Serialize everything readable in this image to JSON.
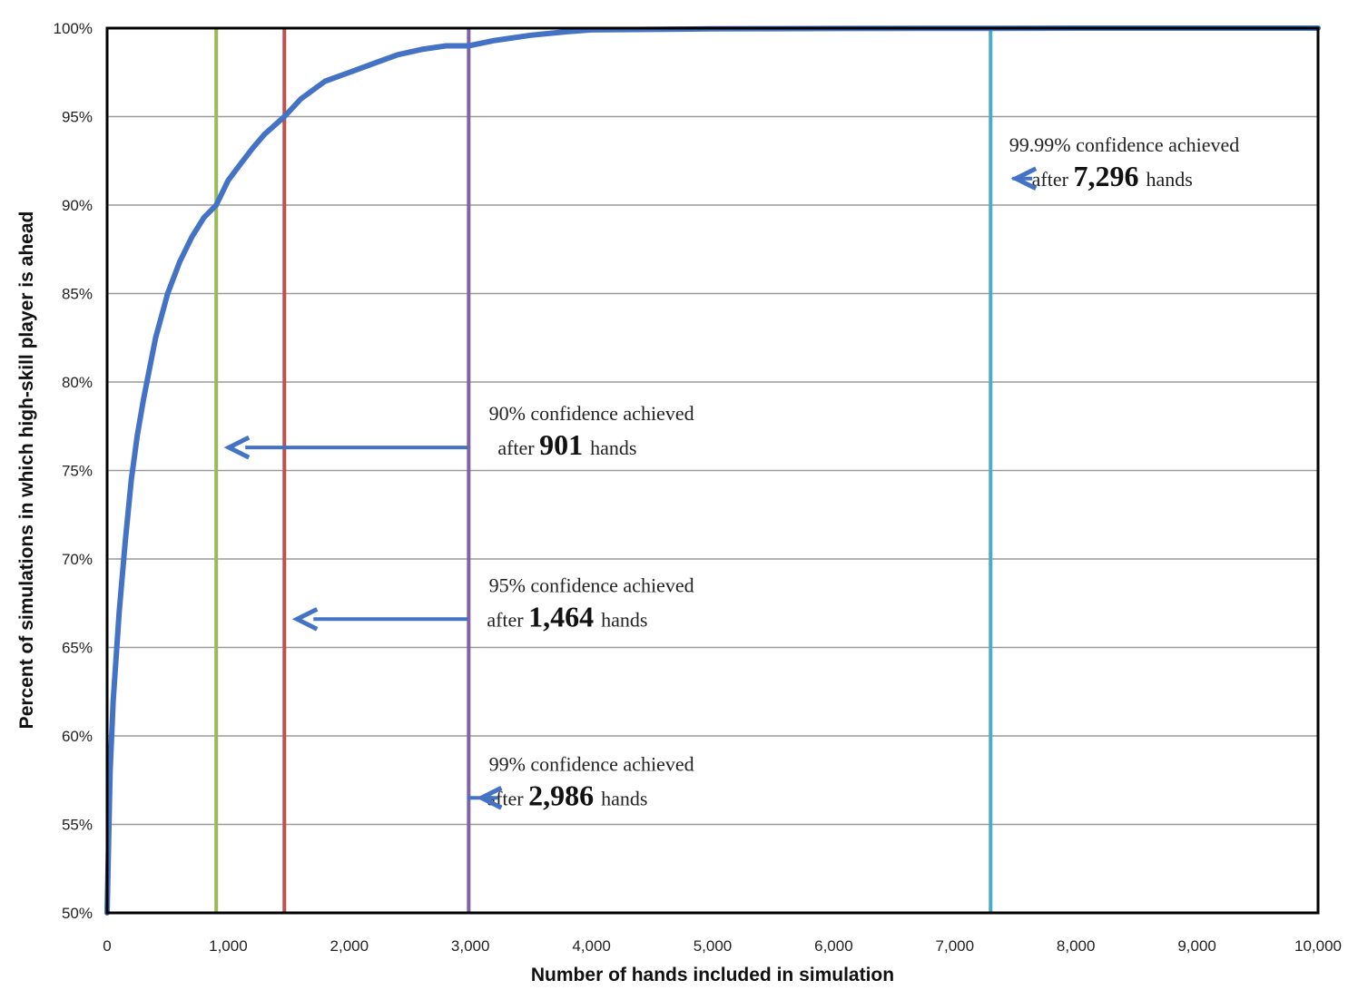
{
  "chart_data": {
    "type": "line",
    "title": "",
    "xlabel": "Number of hands included in simulation",
    "ylabel": "Percent of simulations in which high-skill player is ahead",
    "xlim": [
      0,
      10000
    ],
    "ylim": [
      50,
      100
    ],
    "x_ticks": [
      0,
      1000,
      2000,
      3000,
      4000,
      5000,
      6000,
      7000,
      8000,
      9000,
      10000
    ],
    "x_tick_labels": [
      "0",
      "1,000",
      "2,000",
      "3,000",
      "4,000",
      "5,000",
      "6,000",
      "7,000",
      "8,000",
      "9,000",
      "10,000"
    ],
    "y_ticks": [
      50,
      55,
      60,
      65,
      70,
      75,
      80,
      85,
      90,
      95,
      100
    ],
    "y_tick_labels": [
      "50%",
      "55%",
      "60%",
      "65%",
      "70%",
      "75%",
      "80%",
      "85%",
      "90%",
      "95%",
      "100%"
    ],
    "grid": true,
    "legend": "none",
    "series": [
      {
        "color": "#4472c4",
        "x": [
          0,
          25,
          50,
          100,
          150,
          200,
          250,
          300,
          400,
          500,
          600,
          700,
          800,
          901,
          1000,
          1100,
          1200,
          1300,
          1464,
          1600,
          1800,
          2000,
          2200,
          2400,
          2600,
          2800,
          2986,
          3200,
          3500,
          3800,
          4000,
          4500,
          5000,
          6000,
          7000,
          7296,
          8000,
          9000,
          10000
        ],
        "y": [
          50,
          58,
          62,
          67,
          71,
          74.5,
          77,
          79,
          82.5,
          85,
          86.8,
          88.2,
          89.3,
          90,
          91.4,
          92.3,
          93.2,
          94,
          95,
          96,
          97,
          97.5,
          98,
          98.5,
          98.8,
          99,
          99,
          99.3,
          99.6,
          99.8,
          99.9,
          99.93,
          99.96,
          99.98,
          99.99,
          99.99,
          100,
          100,
          100
        ]
      }
    ],
    "vertical_lines": [
      {
        "x": 901,
        "color": "#9bbb59"
      },
      {
        "x": 1464,
        "color": "#c0504d"
      },
      {
        "x": 2986,
        "color": "#8064a2"
      },
      {
        "x": 7296,
        "color": "#4bacc6"
      }
    ],
    "annotations": [
      {
        "line1": "90% confidence achieved",
        "prefix": "after",
        "number": "901",
        "suffix": "hands",
        "arrow_to_x": 901,
        "y": 76.3,
        "text_x": 4000,
        "number_x": 3800
      },
      {
        "line1": "95% confidence achieved",
        "prefix": "after",
        "number": "1,464",
        "suffix": "hands",
        "arrow_to_x": 1464,
        "y": 66.6,
        "text_x": 4000,
        "number_x": 3800
      },
      {
        "line1": "99% confidence achieved",
        "prefix": "after",
        "number": "2,986",
        "suffix": "hands",
        "arrow_to_x": 2986,
        "y": 56.5,
        "text_x": 4000,
        "number_x": 3800
      },
      {
        "line1": "99.99% confidence achieved",
        "prefix": "after",
        "number": "7,296",
        "suffix": "hands",
        "arrow_to_x": 7400,
        "y": 91.5,
        "text_x": 8400,
        "number_x": 8300
      }
    ]
  }
}
